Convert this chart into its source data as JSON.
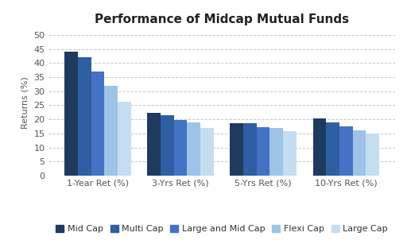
{
  "title": "Performance of Midcap Mutual Funds",
  "categories": [
    "1-Year Ret (%)",
    "3-Yrs Ret (%)",
    "5-Yrs Ret (%)",
    "10-Yrs Ret (%)"
  ],
  "series": {
    "Mid Cap": [
      44.0,
      22.3,
      18.7,
      20.3
    ],
    "Multi Cap": [
      42.0,
      21.5,
      18.7,
      18.8
    ],
    "Large and Mid Cap": [
      37.0,
      19.8,
      17.2,
      17.6
    ],
    "Flexi Cap": [
      31.8,
      18.8,
      17.0,
      16.2
    ],
    "Large Cap": [
      26.2,
      17.0,
      15.9,
      14.9
    ]
  },
  "colors": {
    "Mid Cap": "#1e3a5f",
    "Multi Cap": "#2e5fa3",
    "Large and Mid Cap": "#4472c4",
    "Flexi Cap": "#9dc3e6",
    "Large Cap": "#c5ddf0"
  },
  "ylabel": "Returns (%)",
  "ylim": [
    0,
    52
  ],
  "yticks": [
    0,
    5,
    10,
    15,
    20,
    25,
    30,
    35,
    40,
    45,
    50
  ],
  "bar_width": 0.16,
  "legend_order": [
    "Mid Cap",
    "Multi Cap",
    "Large and Mid Cap",
    "Flexi Cap",
    "Large Cap"
  ],
  "background_color": "#ffffff",
  "grid_color": "#c8c8c8",
  "title_fontsize": 11,
  "axis_fontsize": 8,
  "legend_fontsize": 8,
  "figsize": [
    5.12,
    3.07
  ],
  "dpi": 100
}
